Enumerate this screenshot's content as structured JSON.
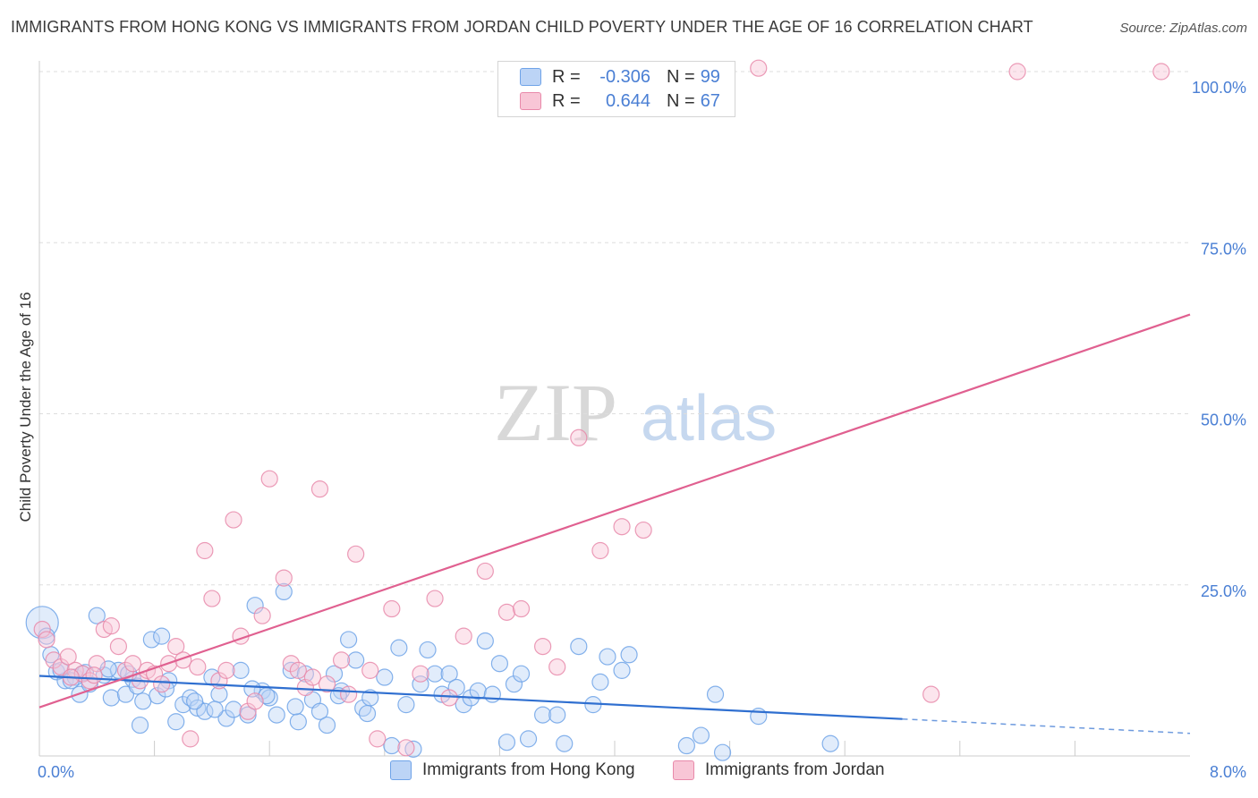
{
  "title": "IMMIGRANTS FROM HONG KONG VS IMMIGRANTS FROM JORDAN CHILD POVERTY UNDER THE AGE OF 16 CORRELATION CHART",
  "source": "Source: ZipAtlas.com",
  "watermark": {
    "zip": "ZIP",
    "atlas": "atlas"
  },
  "legend_top": {
    "rows": [
      {
        "r_label": "R =",
        "r_value": "-0.306",
        "n_label": "N =",
        "n_value": "99",
        "color": "#6fa3e8",
        "fill": "#bcd4f6"
      },
      {
        "r_label": "R =",
        "r_value": "0.644",
        "n_label": "N =",
        "n_value": "67",
        "color": "#e889aa",
        "fill": "#f8c6d6"
      }
    ]
  },
  "legend_bottom": [
    {
      "label": "Immigrants from Hong Kong",
      "color": "#6fa3e8",
      "fill": "#bcd4f6"
    },
    {
      "label": "Immigrants from Jordan",
      "color": "#e889aa",
      "fill": "#f8c6d6"
    }
  ],
  "chart_data": {
    "type": "scatter",
    "xlabel": "",
    "ylabel": "Child Poverty Under the Age of 16",
    "xlim": [
      0,
      8
    ],
    "ylim": [
      0,
      100
    ],
    "x_tick_labels": [
      "0.0%",
      "8.0%"
    ],
    "y_tick_labels": [
      "25.0%",
      "50.0%",
      "75.0%",
      "100.0%"
    ],
    "y_ticks": [
      25,
      50,
      75,
      100
    ],
    "grid": true,
    "legend": "top-center",
    "series": [
      {
        "name": "Immigrants from Hong Kong",
        "color": "#6fa3e8",
        "fill": "#bcd4f6",
        "trend": {
          "x0": 0,
          "y0": 11.7,
          "x1": 6.0,
          "y1": 5.4,
          "dash_x1": 8.0,
          "dash_y1": 3.3
        },
        "points": [
          [
            0.02,
            19.5
          ],
          [
            0.05,
            17.5
          ],
          [
            0.08,
            14.8
          ],
          [
            0.12,
            12.3
          ],
          [
            0.18,
            11.0
          ],
          [
            0.25,
            11.5
          ],
          [
            0.28,
            9.0
          ],
          [
            0.3,
            12.0
          ],
          [
            0.35,
            10.5
          ],
          [
            0.4,
            20.5
          ],
          [
            0.45,
            11.8
          ],
          [
            0.5,
            8.5
          ],
          [
            0.55,
            12.5
          ],
          [
            0.6,
            9.0
          ],
          [
            0.65,
            11.2
          ],
          [
            0.7,
            4.5
          ],
          [
            0.72,
            8.0
          ],
          [
            0.78,
            17.0
          ],
          [
            0.82,
            8.8
          ],
          [
            0.85,
            17.5
          ],
          [
            0.9,
            11.0
          ],
          [
            0.95,
            5.0
          ],
          [
            1.0,
            7.5
          ],
          [
            1.05,
            8.5
          ],
          [
            1.1,
            7.0
          ],
          [
            1.15,
            6.5
          ],
          [
            1.2,
            11.5
          ],
          [
            1.25,
            9.0
          ],
          [
            1.3,
            5.5
          ],
          [
            1.35,
            6.8
          ],
          [
            1.4,
            12.5
          ],
          [
            1.45,
            6.0
          ],
          [
            1.5,
            22.0
          ],
          [
            1.55,
            9.5
          ],
          [
            1.6,
            8.5
          ],
          [
            1.65,
            6.0
          ],
          [
            1.7,
            24.0
          ],
          [
            1.75,
            12.5
          ],
          [
            1.8,
            5.0
          ],
          [
            1.85,
            12.0
          ],
          [
            1.9,
            8.2
          ],
          [
            1.95,
            6.5
          ],
          [
            2.0,
            4.5
          ],
          [
            2.05,
            12.0
          ],
          [
            2.1,
            9.5
          ],
          [
            2.15,
            17.0
          ],
          [
            2.2,
            14.0
          ],
          [
            2.25,
            7.0
          ],
          [
            2.3,
            8.5
          ],
          [
            2.4,
            11.5
          ],
          [
            2.45,
            1.5
          ],
          [
            2.5,
            15.8
          ],
          [
            2.55,
            7.5
          ],
          [
            2.6,
            1.0
          ],
          [
            2.65,
            10.5
          ],
          [
            2.7,
            15.5
          ],
          [
            2.75,
            12.0
          ],
          [
            2.8,
            9.0
          ],
          [
            2.85,
            12.0
          ],
          [
            2.9,
            10.0
          ],
          [
            2.95,
            7.5
          ],
          [
            3.0,
            8.5
          ],
          [
            3.05,
            9.5
          ],
          [
            3.1,
            16.8
          ],
          [
            3.15,
            9.0
          ],
          [
            3.2,
            13.5
          ],
          [
            3.25,
            2.0
          ],
          [
            3.3,
            10.5
          ],
          [
            3.35,
            12.0
          ],
          [
            3.4,
            2.5
          ],
          [
            3.5,
            6.0
          ],
          [
            3.6,
            6.0
          ],
          [
            3.65,
            1.8
          ],
          [
            3.75,
            16.0
          ],
          [
            3.85,
            7.5
          ],
          [
            3.9,
            10.8
          ],
          [
            3.95,
            14.5
          ],
          [
            4.05,
            12.5
          ],
          [
            4.1,
            14.8
          ],
          [
            4.5,
            1.5
          ],
          [
            4.6,
            3.0
          ],
          [
            4.7,
            9.0
          ],
          [
            4.75,
            0.5
          ],
          [
            5.0,
            5.8
          ],
          [
            5.5,
            1.8
          ],
          [
            0.15,
            12.5
          ],
          [
            0.22,
            11.0
          ],
          [
            0.32,
            12.2
          ],
          [
            0.48,
            12.7
          ],
          [
            0.62,
            12.0
          ],
          [
            0.68,
            10.2
          ],
          [
            0.88,
            9.8
          ],
          [
            1.08,
            8.0
          ],
          [
            1.22,
            6.8
          ],
          [
            1.48,
            9.8
          ],
          [
            1.58,
            8.8
          ],
          [
            1.78,
            7.2
          ],
          [
            2.08,
            8.8
          ],
          [
            2.28,
            6.2
          ]
        ]
      },
      {
        "name": "Immigrants from Jordan",
        "color": "#e889aa",
        "fill": "#f8c6d6",
        "trend": {
          "x0": 0,
          "y0": 7.1,
          "x1": 8.0,
          "y1": 64.5
        },
        "points": [
          [
            0.02,
            18.5
          ],
          [
            0.05,
            17.0
          ],
          [
            0.1,
            14.0
          ],
          [
            0.15,
            13.0
          ],
          [
            0.2,
            14.5
          ],
          [
            0.25,
            12.5
          ],
          [
            0.3,
            12.0
          ],
          [
            0.35,
            11.0
          ],
          [
            0.4,
            13.5
          ],
          [
            0.45,
            18.5
          ],
          [
            0.5,
            19.0
          ],
          [
            0.55,
            16.0
          ],
          [
            0.6,
            12.5
          ],
          [
            0.65,
            13.5
          ],
          [
            0.7,
            11.0
          ],
          [
            0.75,
            12.5
          ],
          [
            0.8,
            12.0
          ],
          [
            0.85,
            10.5
          ],
          [
            0.9,
            13.5
          ],
          [
            0.95,
            16.0
          ],
          [
            1.0,
            14.0
          ],
          [
            1.05,
            2.5
          ],
          [
            1.1,
            13.0
          ],
          [
            1.15,
            30.0
          ],
          [
            1.2,
            23.0
          ],
          [
            1.25,
            11.0
          ],
          [
            1.3,
            12.5
          ],
          [
            1.35,
            34.5
          ],
          [
            1.4,
            17.5
          ],
          [
            1.45,
            6.5
          ],
          [
            1.5,
            8.0
          ],
          [
            1.55,
            20.5
          ],
          [
            1.6,
            40.5
          ],
          [
            1.7,
            26.0
          ],
          [
            1.75,
            13.5
          ],
          [
            1.8,
            12.5
          ],
          [
            1.85,
            10.0
          ],
          [
            1.9,
            11.5
          ],
          [
            1.95,
            39.0
          ],
          [
            2.0,
            10.5
          ],
          [
            2.1,
            14.0
          ],
          [
            2.15,
            9.0
          ],
          [
            2.2,
            29.5
          ],
          [
            2.3,
            12.5
          ],
          [
            2.35,
            2.5
          ],
          [
            2.45,
            21.5
          ],
          [
            2.55,
            1.2
          ],
          [
            2.65,
            12.0
          ],
          [
            2.75,
            23.0
          ],
          [
            2.85,
            8.5
          ],
          [
            2.95,
            17.5
          ],
          [
            3.1,
            27.0
          ],
          [
            3.25,
            21.0
          ],
          [
            3.35,
            21.5
          ],
          [
            3.5,
            16.0
          ],
          [
            3.6,
            13.0
          ],
          [
            3.75,
            46.5
          ],
          [
            3.9,
            30.0
          ],
          [
            4.05,
            33.5
          ],
          [
            4.2,
            33.0
          ],
          [
            4.6,
            100.0
          ],
          [
            5.0,
            100.5
          ],
          [
            6.8,
            100.0
          ],
          [
            7.8,
            100.0
          ],
          [
            6.2,
            9.0
          ],
          [
            0.22,
            11.5
          ],
          [
            0.38,
            11.8
          ]
        ]
      }
    ]
  }
}
